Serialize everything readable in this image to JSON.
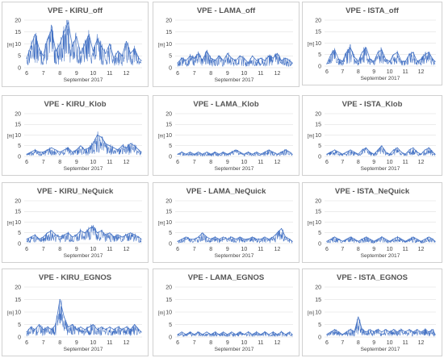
{
  "figure": {
    "xlabel": "September 2017",
    "ylabel": "[m]",
    "x_ticks": [
      "6",
      "7",
      "8",
      "9",
      "10",
      "11",
      "12"
    ]
  },
  "colors": {
    "series": "#4472c4",
    "grid": "#d9d9d9",
    "border": "#d0d0d0",
    "title": "#555555"
  },
  "chart_data": [
    {
      "type": "line",
      "title": "VPE - KIRU_off",
      "xlabel": "September 2017",
      "ylabel": "[m]",
      "ylim": [
        0,
        20
      ],
      "yticks": [
        0,
        5,
        10,
        15,
        20
      ],
      "xlim": [
        5.85,
        12.95
      ],
      "grid": "horizontal",
      "x": [
        6.0,
        6.25,
        6.5,
        6.75,
        7.0,
        7.25,
        7.5,
        7.75,
        8.0,
        8.25,
        8.5,
        8.75,
        9.0,
        9.25,
        9.5,
        9.75,
        10.0,
        10.25,
        10.5,
        10.75,
        11.0,
        11.25,
        11.5,
        11.75,
        12.0,
        12.25,
        12.5,
        12.75,
        12.9
      ],
      "series": [
        {
          "values": [
            4,
            9,
            14,
            8,
            5,
            12,
            16,
            7,
            10,
            15,
            19,
            9,
            13,
            6,
            10,
            14,
            7,
            12,
            9,
            6,
            10,
            4,
            7,
            5,
            11,
            6,
            8,
            4,
            3
          ]
        }
      ]
    },
    {
      "type": "line",
      "title": "VPE - LAMA_off",
      "xlabel": "September 2017",
      "ylabel": "[m]",
      "ylim": [
        0,
        20
      ],
      "yticks": [
        0,
        5,
        10,
        15,
        20
      ],
      "xlim": [
        5.85,
        12.95
      ],
      "grid": "horizontal",
      "x": [
        6.0,
        6.25,
        6.5,
        6.75,
        7.0,
        7.25,
        7.5,
        7.75,
        8.0,
        8.25,
        8.5,
        8.75,
        9.0,
        9.25,
        9.5,
        9.75,
        10.0,
        10.25,
        10.5,
        10.75,
        11.0,
        11.25,
        11.5,
        11.75,
        12.0,
        12.25,
        12.5,
        12.75,
        12.9
      ],
      "series": [
        {
          "values": [
            2,
            4,
            3,
            5,
            4,
            6,
            3,
            7,
            4,
            3,
            5,
            3,
            6,
            4,
            3,
            5,
            4,
            2,
            5,
            3,
            4,
            3,
            5,
            4,
            6,
            3,
            4,
            3,
            2
          ]
        }
      ]
    },
    {
      "type": "line",
      "title": "VPE - ISTA_off",
      "xlabel": "September 2017",
      "ylabel": "[m]",
      "ylim": [
        0,
        20
      ],
      "yticks": [
        0,
        5,
        10,
        15,
        20
      ],
      "xlim": [
        5.85,
        12.95
      ],
      "grid": "horizontal",
      "x": [
        6.0,
        6.25,
        6.5,
        6.75,
        7.0,
        7.25,
        7.5,
        7.75,
        8.0,
        8.25,
        8.5,
        8.75,
        9.0,
        9.25,
        9.5,
        9.75,
        10.0,
        10.25,
        10.5,
        10.75,
        11.0,
        11.25,
        11.5,
        11.75,
        12.0,
        12.25,
        12.5,
        12.75,
        12.9
      ],
      "series": [
        {
          "values": [
            1,
            5,
            7,
            3,
            2,
            6,
            8,
            4,
            2,
            6,
            8,
            3,
            2,
            6,
            7,
            3,
            2,
            5,
            6,
            2,
            2,
            5,
            6,
            2,
            3,
            5,
            6,
            3,
            2
          ]
        }
      ]
    },
    {
      "type": "line",
      "title": "VPE - KIRU_Klob",
      "xlabel": "September 2017",
      "ylabel": "[m]",
      "ylim": [
        0,
        20
      ],
      "yticks": [
        0,
        5,
        10,
        15,
        20
      ],
      "xlim": [
        5.85,
        12.95
      ],
      "grid": "horizontal",
      "x": [
        6.0,
        6.25,
        6.5,
        6.75,
        7.0,
        7.25,
        7.5,
        7.75,
        8.0,
        8.25,
        8.5,
        8.75,
        9.0,
        9.25,
        9.5,
        9.75,
        10.0,
        10.25,
        10.5,
        10.75,
        11.0,
        11.25,
        11.5,
        11.75,
        12.0,
        12.25,
        12.5,
        12.75,
        12.9
      ],
      "series": [
        {
          "values": [
            1,
            2,
            3,
            2,
            2,
            3,
            4,
            3,
            2,
            3,
            4,
            2,
            3,
            5,
            3,
            4,
            6,
            10,
            9,
            6,
            5,
            4,
            3,
            5,
            4,
            6,
            5,
            3,
            2
          ]
        }
      ]
    },
    {
      "type": "line",
      "title": "VPE - LAMA_Klob",
      "xlabel": "September 2017",
      "ylabel": "[m]",
      "ylim": [
        0,
        20
      ],
      "yticks": [
        0,
        5,
        10,
        15,
        20
      ],
      "xlim": [
        5.85,
        12.95
      ],
      "grid": "horizontal",
      "x": [
        6.0,
        6.25,
        6.5,
        6.75,
        7.0,
        7.25,
        7.5,
        7.75,
        8.0,
        8.25,
        8.5,
        8.75,
        9.0,
        9.25,
        9.5,
        9.75,
        10.0,
        10.25,
        10.5,
        10.75,
        11.0,
        11.25,
        11.5,
        11.75,
        12.0,
        12.25,
        12.5,
        12.75,
        12.9
      ],
      "series": [
        {
          "values": [
            1,
            2,
            1,
            2,
            1,
            2,
            1,
            2,
            1,
            2,
            1,
            2,
            1,
            2,
            3,
            2,
            1,
            2,
            1,
            2,
            1,
            2,
            3,
            2,
            1,
            2,
            3,
            2,
            1
          ]
        }
      ]
    },
    {
      "type": "line",
      "title": "VPE - ISTA_Klob",
      "xlabel": "September 2017",
      "ylabel": "[m]",
      "ylim": [
        0,
        20
      ],
      "yticks": [
        0,
        5,
        10,
        15,
        20
      ],
      "xlim": [
        5.85,
        12.95
      ],
      "grid": "horizontal",
      "x": [
        6.0,
        6.25,
        6.5,
        6.75,
        7.0,
        7.25,
        7.5,
        7.75,
        8.0,
        8.25,
        8.5,
        8.75,
        9.0,
        9.25,
        9.5,
        9.75,
        10.0,
        10.25,
        10.5,
        10.75,
        11.0,
        11.25,
        11.5,
        11.75,
        12.0,
        12.25,
        12.5,
        12.75,
        12.9
      ],
      "series": [
        {
          "values": [
            1,
            2,
            3,
            2,
            1,
            2,
            3,
            2,
            1,
            3,
            4,
            2,
            1,
            3,
            5,
            2,
            1,
            3,
            4,
            2,
            1,
            3,
            4,
            2,
            1,
            3,
            4,
            2,
            1
          ]
        }
      ]
    },
    {
      "type": "line",
      "title": "VPE - KIRU_NeQuick",
      "xlabel": "September 2017",
      "ylabel": "[m]",
      "ylim": [
        0,
        20
      ],
      "yticks": [
        0,
        5,
        10,
        15,
        20
      ],
      "xlim": [
        5.85,
        12.95
      ],
      "grid": "horizontal",
      "x": [
        6.0,
        6.25,
        6.5,
        6.75,
        7.0,
        7.25,
        7.5,
        7.75,
        8.0,
        8.25,
        8.5,
        8.75,
        9.0,
        9.25,
        9.5,
        9.75,
        10.0,
        10.25,
        10.5,
        10.75,
        11.0,
        11.25,
        11.5,
        11.75,
        12.0,
        12.25,
        12.5,
        12.75,
        12.9
      ],
      "series": [
        {
          "values": [
            2,
            3,
            4,
            2,
            3,
            5,
            6,
            4,
            3,
            4,
            5,
            3,
            4,
            6,
            5,
            7,
            8,
            5,
            6,
            4,
            5,
            3,
            4,
            3,
            4,
            5,
            4,
            3,
            2
          ]
        }
      ]
    },
    {
      "type": "line",
      "title": "VPE - LAMA_NeQuick",
      "xlabel": "September 2017",
      "ylabel": "[m]",
      "ylim": [
        0,
        20
      ],
      "yticks": [
        0,
        5,
        10,
        15,
        20
      ],
      "xlim": [
        5.85,
        12.95
      ],
      "grid": "horizontal",
      "x": [
        6.0,
        6.25,
        6.5,
        6.75,
        7.0,
        7.25,
        7.5,
        7.75,
        8.0,
        8.25,
        8.5,
        8.75,
        9.0,
        9.25,
        9.5,
        9.75,
        10.0,
        10.25,
        10.5,
        10.75,
        11.0,
        11.25,
        11.5,
        11.75,
        12.0,
        12.25,
        12.5,
        12.75,
        12.9
      ],
      "series": [
        {
          "values": [
            1,
            2,
            3,
            2,
            2,
            3,
            5,
            3,
            2,
            3,
            2,
            3,
            2,
            3,
            2,
            3,
            2,
            2,
            3,
            2,
            2,
            3,
            2,
            3,
            5,
            7,
            3,
            2,
            1
          ]
        }
      ]
    },
    {
      "type": "line",
      "title": "VPE - ISTA_NeQuick",
      "xlabel": "September 2017",
      "ylabel": "[m]",
      "ylim": [
        0,
        20
      ],
      "yticks": [
        0,
        5,
        10,
        15,
        20
      ],
      "xlim": [
        5.85,
        12.95
      ],
      "grid": "horizontal",
      "x": [
        6.0,
        6.25,
        6.5,
        6.75,
        7.0,
        7.25,
        7.5,
        7.75,
        8.0,
        8.25,
        8.5,
        8.75,
        9.0,
        9.25,
        9.5,
        9.75,
        10.0,
        10.25,
        10.5,
        10.75,
        11.0,
        11.25,
        11.5,
        11.75,
        12.0,
        12.25,
        12.5,
        12.75,
        12.9
      ],
      "series": [
        {
          "values": [
            1,
            2,
            3,
            2,
            1,
            2,
            3,
            2,
            1,
            2,
            3,
            2,
            1,
            2,
            3,
            2,
            1,
            2,
            3,
            2,
            1,
            2,
            3,
            2,
            1,
            2,
            3,
            2,
            1
          ]
        }
      ]
    },
    {
      "type": "line",
      "title": "VPE - KIRU_EGNOS",
      "xlabel": "September 2017",
      "ylabel": "[m]",
      "ylim": [
        0,
        20
      ],
      "yticks": [
        0,
        5,
        10,
        15,
        20
      ],
      "xlim": [
        5.85,
        12.95
      ],
      "grid": "horizontal",
      "x": [
        6.0,
        6.25,
        6.5,
        6.75,
        7.0,
        7.25,
        7.5,
        7.75,
        8.0,
        8.25,
        8.5,
        8.75,
        9.0,
        9.25,
        9.5,
        9.75,
        10.0,
        10.25,
        10.5,
        10.75,
        11.0,
        11.25,
        11.5,
        11.75,
        12.0,
        12.25,
        12.5,
        12.75,
        12.9
      ],
      "series": [
        {
          "values": [
            2,
            4,
            3,
            5,
            3,
            4,
            3,
            5,
            15,
            8,
            4,
            5,
            3,
            4,
            3,
            4,
            5,
            3,
            4,
            3,
            4,
            3,
            4,
            3,
            4,
            3,
            5,
            3,
            2
          ]
        }
      ]
    },
    {
      "type": "line",
      "title": "VPE - LAMA_EGNOS",
      "xlabel": "September 2017",
      "ylabel": "[m]",
      "ylim": [
        0,
        20
      ],
      "yticks": [
        0,
        5,
        10,
        15,
        20
      ],
      "xlim": [
        5.85,
        12.95
      ],
      "grid": "horizontal",
      "x": [
        6.0,
        6.25,
        6.5,
        6.75,
        7.0,
        7.25,
        7.5,
        7.75,
        8.0,
        8.25,
        8.5,
        8.75,
        9.0,
        9.25,
        9.5,
        9.75,
        10.0,
        10.25,
        10.5,
        10.75,
        11.0,
        11.25,
        11.5,
        11.75,
        12.0,
        12.25,
        12.5,
        12.75,
        12.9
      ],
      "series": [
        {
          "values": [
            1,
            2,
            1,
            2,
            1,
            2,
            1,
            2,
            1,
            2,
            1,
            2,
            1,
            2,
            1,
            2,
            1,
            2,
            1,
            2,
            1,
            2,
            1,
            2,
            1,
            2,
            1,
            2,
            1
          ]
        }
      ]
    },
    {
      "type": "line",
      "title": "VPE - ISTA_EGNOS",
      "xlabel": "September 2017",
      "ylabel": "[m]",
      "ylim": [
        0,
        20
      ],
      "yticks": [
        0,
        5,
        10,
        15,
        20
      ],
      "xlim": [
        5.85,
        12.95
      ],
      "grid": "horizontal",
      "x": [
        6.0,
        6.25,
        6.5,
        6.75,
        7.0,
        7.25,
        7.5,
        7.75,
        8.0,
        8.25,
        8.5,
        8.75,
        9.0,
        9.25,
        9.5,
        9.75,
        10.0,
        10.25,
        10.5,
        10.75,
        11.0,
        11.25,
        11.5,
        11.75,
        12.0,
        12.25,
        12.5,
        12.75,
        12.9
      ],
      "series": [
        {
          "values": [
            1,
            2,
            3,
            2,
            1,
            2,
            3,
            2,
            8,
            3,
            2,
            3,
            2,
            3,
            2,
            3,
            2,
            3,
            2,
            3,
            2,
            3,
            2,
            3,
            2,
            3,
            2,
            3,
            1
          ]
        }
      ]
    }
  ]
}
